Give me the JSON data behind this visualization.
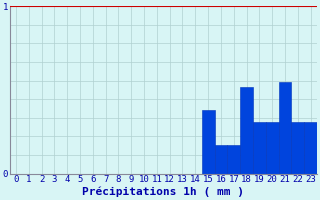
{
  "xlabel": "Précipitations 1h ( mm )",
  "hours": [
    0,
    1,
    2,
    3,
    4,
    5,
    6,
    7,
    8,
    9,
    10,
    11,
    12,
    13,
    14,
    15,
    16,
    17,
    18,
    19,
    20,
    21,
    22,
    23
  ],
  "values": [
    0,
    0,
    0,
    0,
    0,
    0,
    0,
    0,
    0,
    0,
    0,
    0,
    0,
    0,
    0,
    0.38,
    0.17,
    0.17,
    0.52,
    0.31,
    0.31,
    0.55,
    0.31,
    0.31
  ],
  "bar_color": "#0044dd",
  "bar_edge_color": "#0033bb",
  "background_color": "#d8f5f5",
  "grid_color": "#b0d0d0",
  "text_color": "#0000aa",
  "ylim": [
    0,
    1.0
  ],
  "yticks": [
    0,
    1
  ],
  "xlabel_fontsize": 8,
  "tick_fontsize": 6.5
}
